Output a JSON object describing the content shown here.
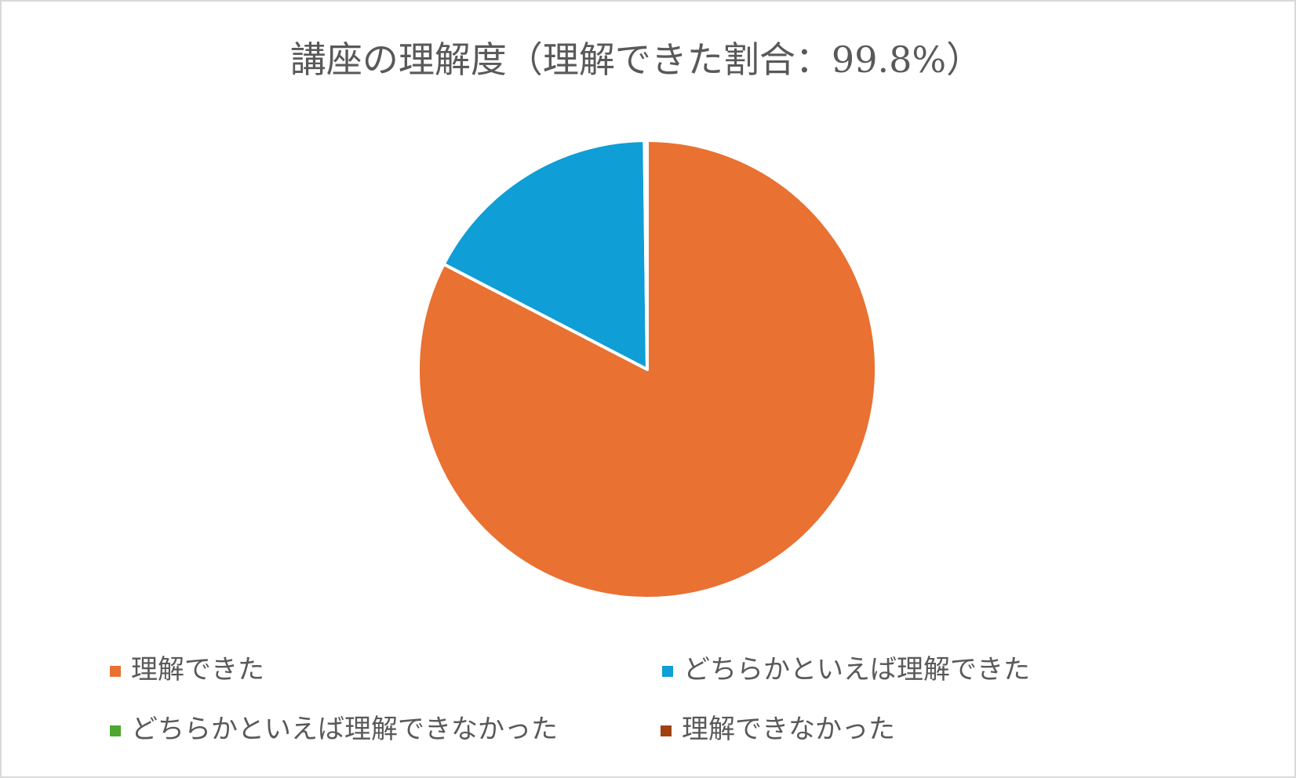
{
  "chart_data": {
    "type": "pie",
    "title": "講座の理解度（理解できた割合：99.8%）",
    "categories": [
      "理解できた",
      "どちらかといえば理解できた",
      "どちらかといえば理解できなかった",
      "理解できなかった"
    ],
    "values": [
      82.6,
      17.2,
      0.2,
      0
    ],
    "colors": [
      "#e97132",
      "#0f9ed5",
      "#4ea72e",
      "#a0400f"
    ],
    "legend": "bottom"
  }
}
